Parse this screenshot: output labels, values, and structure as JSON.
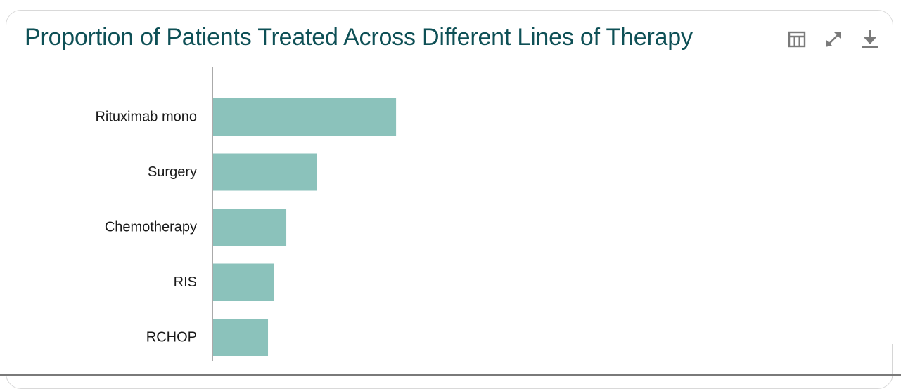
{
  "chart_data": {
    "type": "bar",
    "orientation": "horizontal",
    "title": "Proportion of Patients Treated Across Different Lines of Therapy",
    "categories": [
      "Rituximab mono",
      "Surgery",
      "Chemotherapy",
      "RIS",
      "RCHOP"
    ],
    "values": [
      30,
      17,
      12,
      10,
      9
    ],
    "xlim": [
      0,
      100
    ],
    "grid": false,
    "bar_color": "#8bc2bb"
  },
  "toolbar": {
    "icons": [
      "table-icon",
      "expand-icon",
      "download-icon"
    ]
  },
  "colors": {
    "title": "#0e5056",
    "icon": "#7a7a7a",
    "axis": "#555555"
  }
}
